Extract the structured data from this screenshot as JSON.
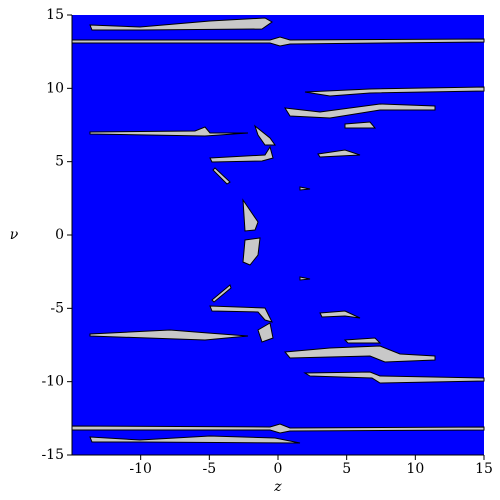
{
  "chart_data": {
    "type": "region",
    "xlabel": "z",
    "ylabel": "ν",
    "xlim": [
      -15,
      15
    ],
    "ylim": [
      -15,
      15
    ],
    "xticks": [
      -10,
      -5,
      0,
      5,
      10,
      15
    ],
    "yticks": [
      -15,
      -10,
      -5,
      0,
      5,
      10,
      15
    ],
    "fill_color": "#0000ff",
    "region_color": "#c8c8c8"
  }
}
